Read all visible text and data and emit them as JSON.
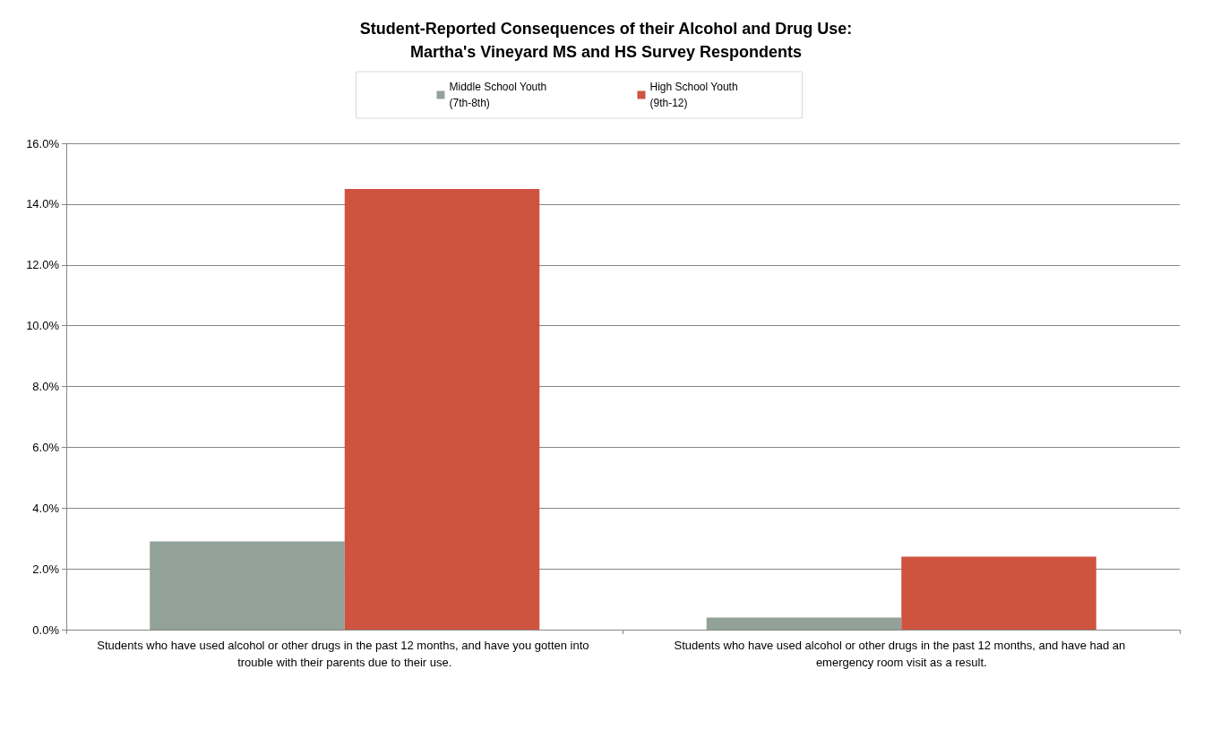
{
  "chart_data": {
    "type": "bar",
    "title": "Student-Reported Consequences of their Alcohol and Drug Use:\nMartha's Vineyard MS and HS Survey Respondents",
    "categories": [
      "Students who have used alcohol or other drugs in the past 12 months, and have you gotten into trouble with their parents due to their use.",
      "Students who have used alcohol or other drugs in the past 12 months, and have had an emergency room visit as a result."
    ],
    "series": [
      {
        "name": "Middle School Youth (7th-8th)",
        "color": "#93a299",
        "values": [
          2.9,
          0.4
        ]
      },
      {
        "name": "High School Youth (9th-12)",
        "color": "#cf543f",
        "values": [
          14.5,
          2.4
        ]
      }
    ],
    "ylim": [
      0,
      16
    ],
    "yticks": [
      {
        "value": 0,
        "label": "0.0%"
      },
      {
        "value": 2,
        "label": "2.0%"
      },
      {
        "value": 4,
        "label": "4.0%"
      },
      {
        "value": 6,
        "label": "6.0%"
      },
      {
        "value": 8,
        "label": "8.0%"
      },
      {
        "value": 10,
        "label": "10.0%"
      },
      {
        "value": 12,
        "label": "12.0%"
      },
      {
        "value": 14,
        "label": "14.0%"
      },
      {
        "value": 16,
        "label": "16.0%"
      }
    ],
    "grid": "y",
    "legend": "top"
  }
}
